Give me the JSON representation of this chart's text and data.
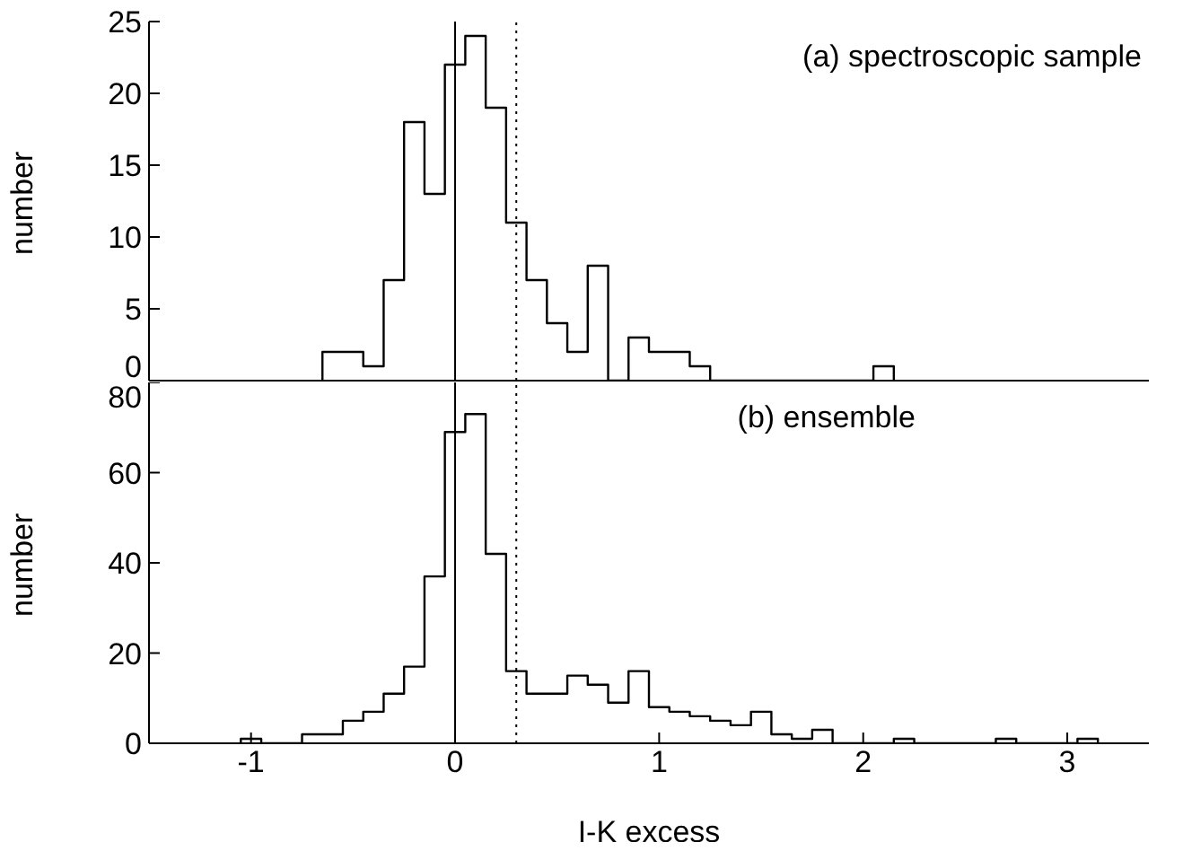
{
  "chart_data": [
    {
      "type": "histogram",
      "ylabel": "number",
      "annotations": [
        "(a) spectroscopic sample"
      ],
      "bins": [
        -0.65,
        -0.55,
        -0.45,
        -0.35,
        -0.25,
        -0.15,
        -0.05,
        0.05,
        0.15,
        0.25,
        0.35,
        0.45,
        0.55,
        0.65,
        0.75,
        0.85,
        0.95,
        1.05,
        1.15,
        1.25,
        1.35,
        1.45,
        1.55,
        1.65,
        1.75,
        1.85,
        1.95,
        2.05,
        2.15
      ],
      "values": [
        2,
        2,
        1,
        7,
        18,
        13,
        22,
        24,
        19,
        11,
        7,
        4,
        2,
        8,
        0,
        3,
        2,
        2,
        1,
        0,
        0,
        0,
        0,
        0,
        0,
        0,
        0,
        1
      ],
      "color": "#000000",
      "xlim": [
        -1.5,
        3.4
      ],
      "xticks": [
        -1,
        0,
        1,
        2,
        3
      ],
      "ylim": [
        0,
        25
      ],
      "yticks": [
        0,
        5,
        10,
        15,
        20,
        25
      ],
      "tick_labels": "y",
      "ref_lines": [
        {
          "axis": "x",
          "value": 0,
          "line_style": "solid"
        },
        {
          "axis": "x",
          "value": 0.3,
          "line_style": "dotted"
        }
      ]
    },
    {
      "type": "histogram",
      "xlabel": "I-K excess",
      "ylabel": "number",
      "annotations": [
        "(b) ensemble"
      ],
      "bins": [
        -1.05,
        -0.95,
        -0.85,
        -0.75,
        -0.65,
        -0.55,
        -0.45,
        -0.35,
        -0.25,
        -0.15,
        -0.05,
        0.05,
        0.15,
        0.25,
        0.35,
        0.45,
        0.55,
        0.65,
        0.75,
        0.85,
        0.95,
        1.05,
        1.15,
        1.25,
        1.35,
        1.45,
        1.55,
        1.65,
        1.75,
        1.85,
        1.95,
        2.05,
        2.15,
        2.25,
        2.35,
        2.45,
        2.55,
        2.65,
        2.75,
        2.85,
        2.95,
        3.05,
        3.15
      ],
      "values": [
        1,
        0,
        0,
        2,
        2,
        5,
        7,
        11,
        17,
        37,
        69,
        73,
        42,
        16,
        11,
        11,
        15,
        13,
        9,
        16,
        8,
        7,
        6,
        5,
        4,
        7,
        2,
        1,
        3,
        0,
        0,
        0,
        1,
        0,
        0,
        0,
        0,
        1,
        0,
        0,
        0,
        1
      ],
      "color": "#000000",
      "xlim": [
        -1.5,
        3.4
      ],
      "xticks": [
        -1,
        0,
        1,
        2,
        3
      ],
      "ylim": [
        0,
        80
      ],
      "yticks": [
        0,
        20,
        40,
        60,
        80
      ],
      "ref_lines": [
        {
          "axis": "x",
          "value": 0,
          "line_style": "solid"
        },
        {
          "axis": "x",
          "value": 0.3,
          "line_style": "dotted"
        }
      ]
    }
  ]
}
